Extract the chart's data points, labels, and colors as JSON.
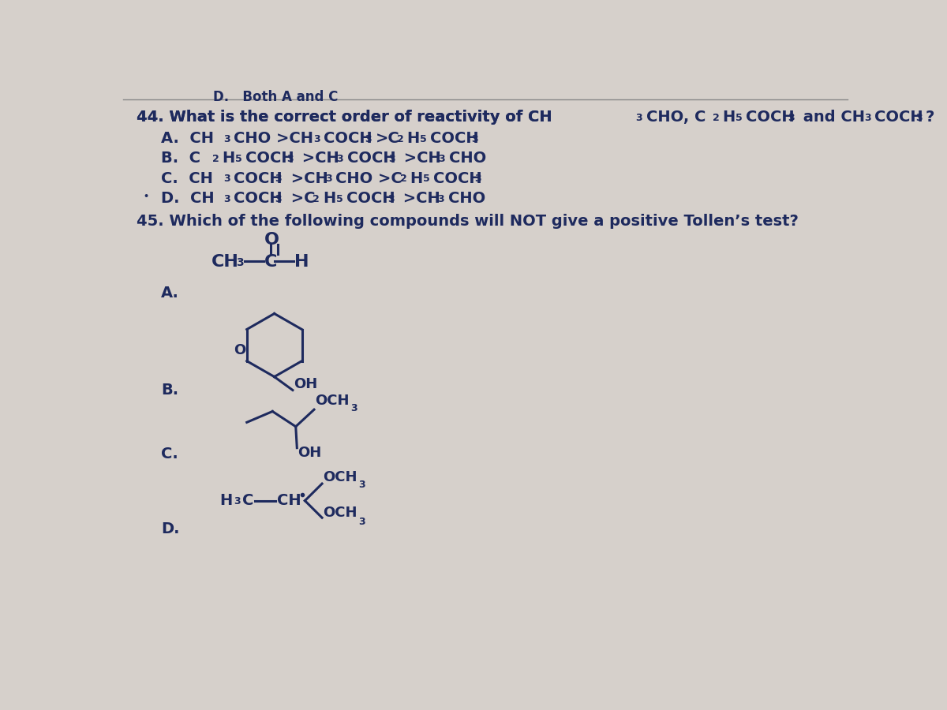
{
  "bg_color": "#d6d0cb",
  "text_color": "#1e2a5e",
  "line_color": "#1e2a5e",
  "header_text": "D.   Both A and C",
  "q44_line1": "44. What is the correct order of reactivity of CH",
  "q44_line1b": "CHO, C",
  "q44_line1c": "H",
  "q44_line1d": "COCH",
  "q44_line1e": " and CH",
  "q44_line1f": "COCH",
  "q44_A": "A.  CH",
  "q44_B": "B.  C",
  "q44_C": "C.  CH",
  "q44_D": "D.  CH",
  "q45_text": "45. Which of the following compounds will NOT give a positive Tollen’s test?",
  "font_size": 14,
  "sub_font_size": 9
}
